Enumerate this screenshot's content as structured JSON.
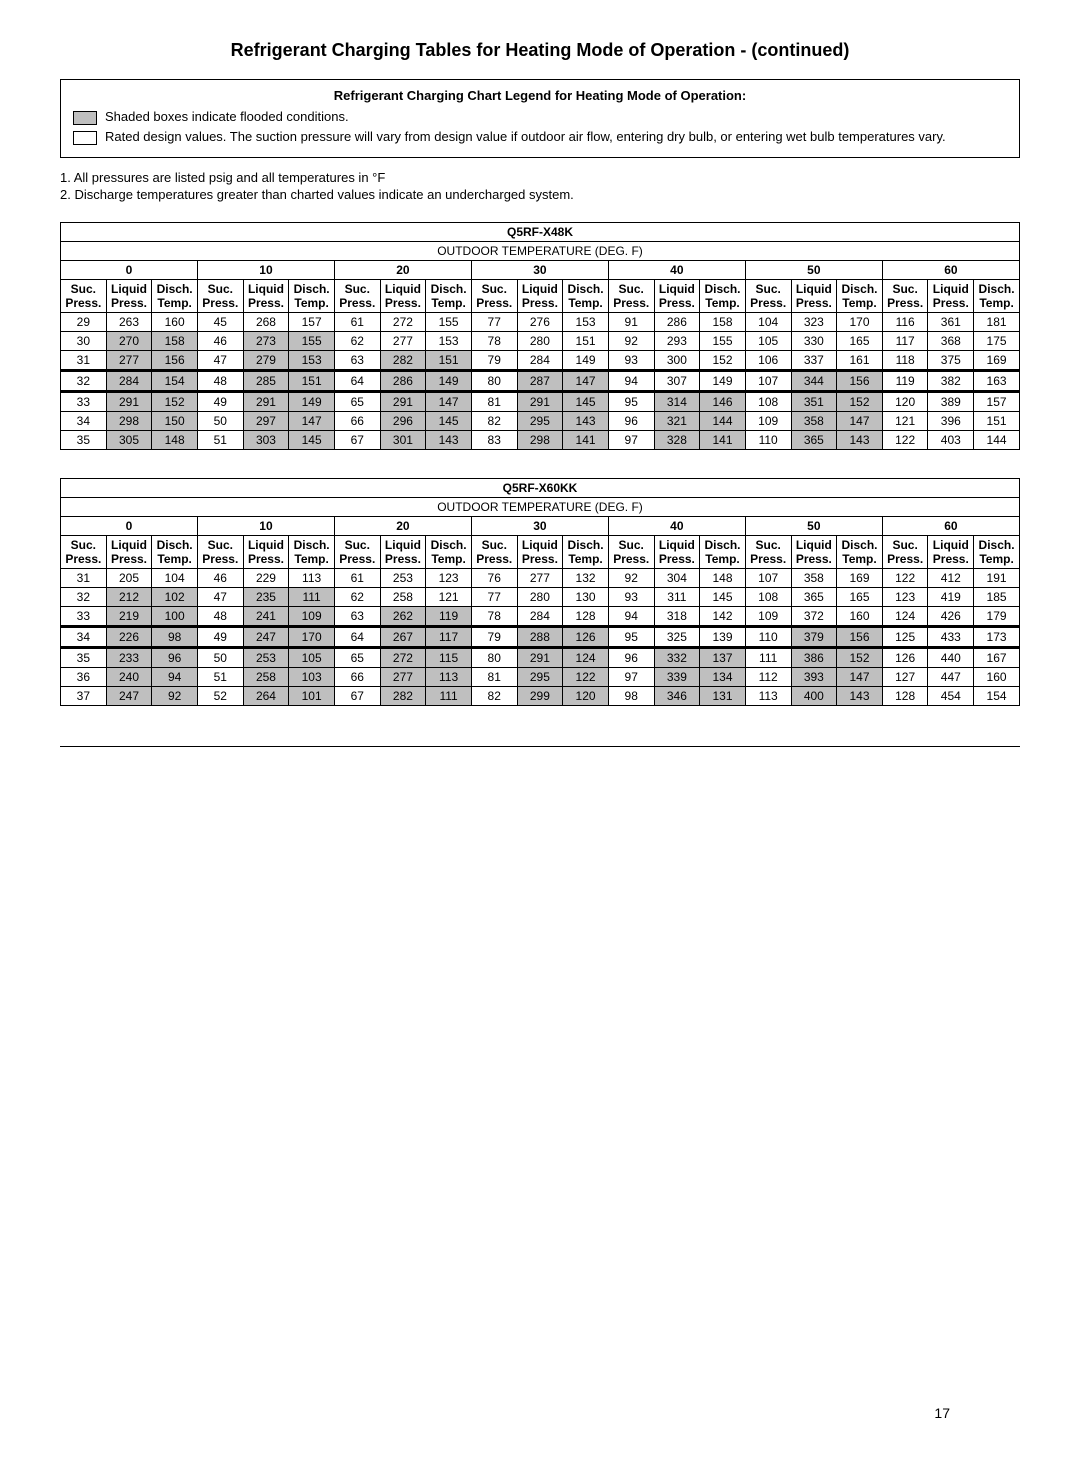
{
  "title": "Refrigerant Charging Tables for Heating Mode of Operation - (continued)",
  "legend": {
    "heading": "Refrigerant Charging Chart Legend for Heating Mode of Operation:",
    "shaded": "Shaded boxes indicate flooded conditions.",
    "rated": "Rated design values. The suction pressure will vary from design value if outdoor air flow, entering dry bulb, or entering wet bulb temperatures vary."
  },
  "notes": [
    "1. All pressures are listed psig and all temperatures in °F",
    "2. Discharge temperatures greater than charted values indicate an undercharged system."
  ],
  "outdoor_header": "OUTDOOR TEMPERATURE (DEG. F)",
  "temp_groups": [
    "0",
    "10",
    "20",
    "30",
    "40",
    "50",
    "60"
  ],
  "col_labels": [
    "Suc. Press.",
    "Liquid Press.",
    "Disch. Temp."
  ],
  "tables": [
    {
      "model": "Q5RF-X48K",
      "design_row": 3,
      "rows": [
        {
          "shaded": [
            false,
            false,
            false,
            false,
            false,
            false,
            false,
            false,
            false,
            false,
            false,
            false,
            false,
            false,
            false,
            false,
            false,
            false,
            false,
            false,
            false
          ],
          "v": [
            "29",
            "263",
            "160",
            "45",
            "268",
            "157",
            "61",
            "272",
            "155",
            "77",
            "276",
            "153",
            "91",
            "286",
            "158",
            "104",
            "323",
            "170",
            "116",
            "361",
            "181"
          ]
        },
        {
          "shaded": [
            false,
            true,
            true,
            false,
            true,
            true,
            false,
            false,
            false,
            false,
            false,
            false,
            false,
            false,
            false,
            false,
            false,
            false,
            false,
            false,
            false
          ],
          "v": [
            "30",
            "270",
            "158",
            "46",
            "273",
            "155",
            "62",
            "277",
            "153",
            "78",
            "280",
            "151",
            "92",
            "293",
            "155",
            "105",
            "330",
            "165",
            "117",
            "368",
            "175"
          ]
        },
        {
          "shaded": [
            false,
            true,
            true,
            false,
            true,
            true,
            false,
            true,
            true,
            false,
            false,
            false,
            false,
            false,
            false,
            false,
            false,
            false,
            false,
            false,
            false
          ],
          "v": [
            "31",
            "277",
            "156",
            "47",
            "279",
            "153",
            "63",
            "282",
            "151",
            "79",
            "284",
            "149",
            "93",
            "300",
            "152",
            "106",
            "337",
            "161",
            "118",
            "375",
            "169"
          ]
        },
        {
          "shaded": [
            false,
            true,
            true,
            false,
            true,
            true,
            false,
            true,
            true,
            false,
            true,
            true,
            false,
            false,
            false,
            false,
            true,
            true,
            false,
            false,
            false
          ],
          "v": [
            "32",
            "284",
            "154",
            "48",
            "285",
            "151",
            "64",
            "286",
            "149",
            "80",
            "287",
            "147",
            "94",
            "307",
            "149",
            "107",
            "344",
            "156",
            "119",
            "382",
            "163"
          ]
        },
        {
          "shaded": [
            false,
            true,
            true,
            false,
            true,
            true,
            false,
            true,
            true,
            false,
            true,
            true,
            false,
            true,
            true,
            false,
            true,
            true,
            false,
            false,
            false
          ],
          "v": [
            "33",
            "291",
            "152",
            "49",
            "291",
            "149",
            "65",
            "291",
            "147",
            "81",
            "291",
            "145",
            "95",
            "314",
            "146",
            "108",
            "351",
            "152",
            "120",
            "389",
            "157"
          ]
        },
        {
          "shaded": [
            false,
            true,
            true,
            false,
            true,
            true,
            false,
            true,
            true,
            false,
            true,
            true,
            false,
            true,
            true,
            false,
            true,
            true,
            false,
            false,
            false
          ],
          "v": [
            "34",
            "298",
            "150",
            "50",
            "297",
            "147",
            "66",
            "296",
            "145",
            "82",
            "295",
            "143",
            "96",
            "321",
            "144",
            "109",
            "358",
            "147",
            "121",
            "396",
            "151"
          ]
        },
        {
          "shaded": [
            false,
            true,
            true,
            false,
            true,
            true,
            false,
            true,
            true,
            false,
            true,
            true,
            false,
            true,
            true,
            false,
            true,
            true,
            false,
            false,
            false
          ],
          "v": [
            "35",
            "305",
            "148",
            "51",
            "303",
            "145",
            "67",
            "301",
            "143",
            "83",
            "298",
            "141",
            "97",
            "328",
            "141",
            "110",
            "365",
            "143",
            "122",
            "403",
            "144"
          ]
        }
      ]
    },
    {
      "model": "Q5RF-X60KK",
      "design_row": 3,
      "rows": [
        {
          "shaded": [
            false,
            false,
            false,
            false,
            false,
            false,
            false,
            false,
            false,
            false,
            false,
            false,
            false,
            false,
            false,
            false,
            false,
            false,
            false,
            false,
            false
          ],
          "v": [
            "31",
            "205",
            "104",
            "46",
            "229",
            "113",
            "61",
            "253",
            "123",
            "76",
            "277",
            "132",
            "92",
            "304",
            "148",
            "107",
            "358",
            "169",
            "122",
            "412",
            "191"
          ]
        },
        {
          "shaded": [
            false,
            true,
            true,
            false,
            true,
            true,
            false,
            false,
            false,
            false,
            false,
            false,
            false,
            false,
            false,
            false,
            false,
            false,
            false,
            false,
            false
          ],
          "v": [
            "32",
            "212",
            "102",
            "47",
            "235",
            "111",
            "62",
            "258",
            "121",
            "77",
            "280",
            "130",
            "93",
            "311",
            "145",
            "108",
            "365",
            "165",
            "123",
            "419",
            "185"
          ]
        },
        {
          "shaded": [
            false,
            true,
            true,
            false,
            true,
            true,
            false,
            true,
            true,
            false,
            false,
            false,
            false,
            false,
            false,
            false,
            false,
            false,
            false,
            false,
            false
          ],
          "v": [
            "33",
            "219",
            "100",
            "48",
            "241",
            "109",
            "63",
            "262",
            "119",
            "78",
            "284",
            "128",
            "94",
            "318",
            "142",
            "109",
            "372",
            "160",
            "124",
            "426",
            "179"
          ]
        },
        {
          "shaded": [
            false,
            true,
            true,
            false,
            true,
            true,
            false,
            true,
            true,
            false,
            true,
            true,
            false,
            false,
            false,
            false,
            true,
            true,
            false,
            false,
            false
          ],
          "v": [
            "34",
            "226",
            "98",
            "49",
            "247",
            "170",
            "64",
            "267",
            "117",
            "79",
            "288",
            "126",
            "95",
            "325",
            "139",
            "110",
            "379",
            "156",
            "125",
            "433",
            "173"
          ]
        },
        {
          "shaded": [
            false,
            true,
            true,
            false,
            true,
            true,
            false,
            true,
            true,
            false,
            true,
            true,
            false,
            true,
            true,
            false,
            true,
            true,
            false,
            false,
            false
          ],
          "v": [
            "35",
            "233",
            "96",
            "50",
            "253",
            "105",
            "65",
            "272",
            "115",
            "80",
            "291",
            "124",
            "96",
            "332",
            "137",
            "111",
            "386",
            "152",
            "126",
            "440",
            "167"
          ]
        },
        {
          "shaded": [
            false,
            true,
            true,
            false,
            true,
            true,
            false,
            true,
            true,
            false,
            true,
            true,
            false,
            true,
            true,
            false,
            true,
            true,
            false,
            false,
            false
          ],
          "v": [
            "36",
            "240",
            "94",
            "51",
            "258",
            "103",
            "66",
            "277",
            "113",
            "81",
            "295",
            "122",
            "97",
            "339",
            "134",
            "112",
            "393",
            "147",
            "127",
            "447",
            "160"
          ]
        },
        {
          "shaded": [
            false,
            true,
            true,
            false,
            true,
            true,
            false,
            true,
            true,
            false,
            true,
            true,
            false,
            true,
            true,
            false,
            true,
            true,
            false,
            false,
            false
          ],
          "v": [
            "37",
            "247",
            "92",
            "52",
            "264",
            "101",
            "67",
            "282",
            "111",
            "82",
            "299",
            "120",
            "98",
            "346",
            "131",
            "113",
            "400",
            "143",
            "128",
            "454",
            "154"
          ]
        }
      ]
    }
  ],
  "page_number": "17"
}
